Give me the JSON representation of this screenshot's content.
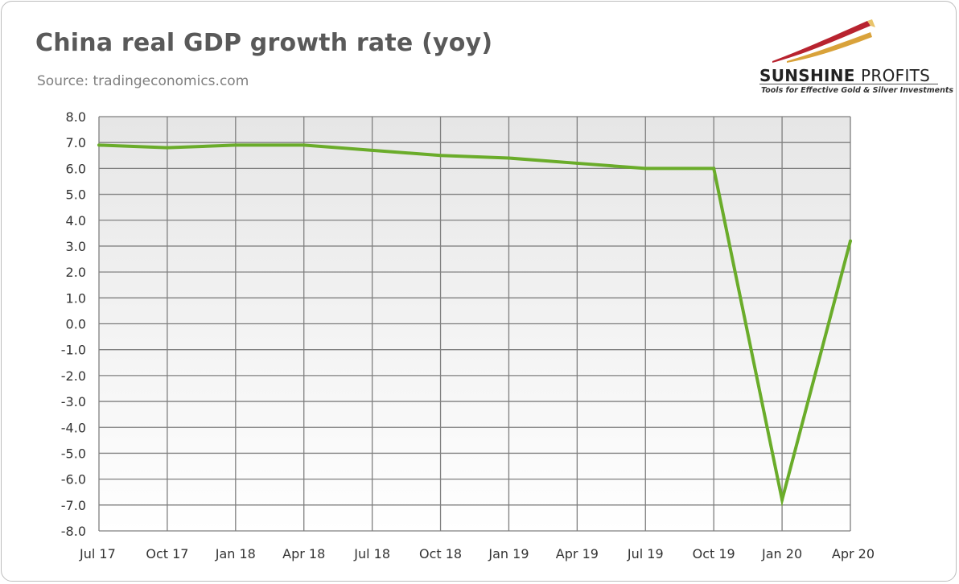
{
  "title": "China real GDP growth rate (yoy)",
  "source": "Source: tradingeconomics.com",
  "logo": {
    "name_bold": "SUNSHINE",
    "name_light": "PROFITS",
    "tagline": "Tools for Effective Gold & Silver Investments"
  },
  "chart_data": {
    "type": "line",
    "title": "China real GDP growth rate (yoy)",
    "xlabel": "",
    "ylabel": "",
    "x": [
      "Jul 17",
      "Oct 17",
      "Jan 18",
      "Apr 18",
      "Jul 18",
      "Oct 18",
      "Jan 19",
      "Apr 19",
      "Jul 19",
      "Oct 19",
      "Jan 20",
      "Apr 20"
    ],
    "y_ticks": [
      "8.0",
      "7.0",
      "6.0",
      "5.0",
      "4.0",
      "3.0",
      "2.0",
      "1.0",
      "0.0",
      "-1.0",
      "-2.0",
      "-3.0",
      "-4.0",
      "-5.0",
      "-6.0",
      "-7.0",
      "-8.0"
    ],
    "ylim": [
      -8,
      8
    ],
    "grid": true,
    "legend": "none",
    "series": [
      {
        "values": [
          6.9,
          6.8,
          6.9,
          6.9,
          6.7,
          6.5,
          6.4,
          6.2,
          6.0,
          6.0,
          -6.8,
          3.2
        ]
      }
    ],
    "colors": {
      "line": "#6aac2a",
      "plot_bg_top": "#e6e6e6",
      "plot_bg_bottom": "#ffffff",
      "grid": "#7f7f7f"
    }
  }
}
